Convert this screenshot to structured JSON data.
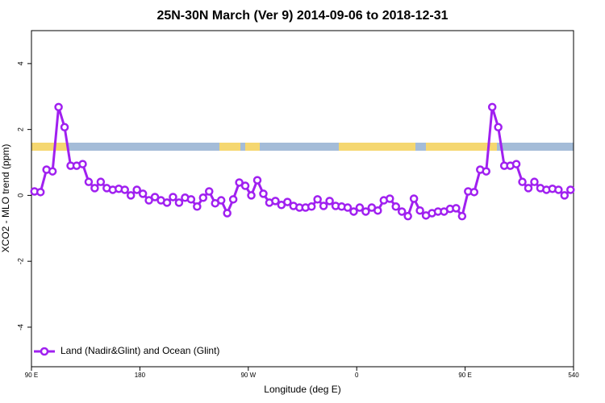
{
  "chart_data": {
    "type": "line",
    "title": "25N-30N March (Ver 9)   2014-09-06 to 2018-12-31",
    "x_label": "Longitude (deg E)",
    "y_label": "XCO2 - MLO trend (ppm)",
    "x": [
      92.5,
      97.5,
      102.5,
      107.5,
      112.5,
      117.5,
      122.5,
      127.5,
      132.5,
      137.5,
      142.5,
      147.5,
      152.5,
      157.5,
      162.5,
      167.5,
      172.5,
      177.5,
      182.5,
      187.5,
      192.5,
      197.5,
      202.5,
      207.5,
      212.5,
      217.5,
      222.5,
      227.5,
      232.5,
      237.5,
      242.5,
      247.5,
      252.5,
      257.5,
      262.5,
      267.5,
      272.5,
      277.5,
      282.5,
      287.5,
      292.5,
      297.5,
      302.5,
      307.5,
      312.5,
      317.5,
      322.5,
      327.5,
      332.5,
      337.5,
      342.5,
      347.5,
      352.5,
      357.5,
      362.5,
      367.5,
      372.5,
      377.5,
      382.5,
      387.5,
      392.5,
      397.5,
      402.5,
      407.5,
      412.5,
      417.5,
      422.5,
      427.5,
      432.5,
      437.5,
      442.5,
      447.5,
      452.5,
      457.5,
      462.5,
      467.5,
      472.5,
      477.5,
      482.5,
      487.5,
      492.5,
      497.5,
      502.5,
      507.5,
      512.5,
      517.5,
      522.5,
      527.5,
      532.5,
      537.5
    ],
    "series": [
      {
        "name": "Land (Nadir&Glint) and Ocean (Glint)",
        "color": "#a020f0",
        "values": [
          0.12,
          0.1,
          0.78,
          0.73,
          2.68,
          2.07,
          0.9,
          0.9,
          0.95,
          0.41,
          0.22,
          0.41,
          0.22,
          0.17,
          0.2,
          0.17,
          0,
          0.17,
          0.05,
          -0.15,
          -0.05,
          -0.15,
          -0.22,
          -0.05,
          -0.22,
          -0.07,
          -0.12,
          -0.34,
          -0.07,
          0.12,
          -0.24,
          -0.15,
          -0.54,
          -0.12,
          0.39,
          0.29,
          0,
          0.46,
          0.05,
          -0.22,
          -0.17,
          -0.29,
          -0.2,
          -0.32,
          -0.37,
          -0.37,
          -0.34,
          -0.12,
          -0.32,
          -0.17,
          -0.32,
          -0.34,
          -0.37,
          -0.49,
          -0.37,
          -0.49,
          -0.37,
          -0.46,
          -0.15,
          -0.1,
          -0.34,
          -0.49,
          -0.63,
          -0.1,
          -0.46,
          -0.61,
          -0.54,
          -0.49,
          -0.49,
          -0.41,
          -0.39,
          -0.63,
          0.12,
          0.1,
          0.78,
          0.73,
          2.68,
          2.07,
          0.9,
          0.9,
          0.95,
          0.41,
          0.22,
          0.41,
          0.22,
          0.17,
          0.2,
          0.17,
          0,
          0.17
        ]
      }
    ],
    "xlim": [
      90,
      540
    ],
    "xticks": [
      {
        "value": 90,
        "label": "90 E"
      },
      180,
      {
        "value": 270,
        "label": "90 W"
      },
      {
        "value": 360,
        "label": "0"
      },
      {
        "value": 450,
        "label": "90 E"
      },
      540
    ],
    "ylim": [
      -5.2,
      5
    ],
    "yticks": [
      -4,
      -2,
      0,
      2,
      4
    ],
    "legend": "bottom-left"
  }
}
